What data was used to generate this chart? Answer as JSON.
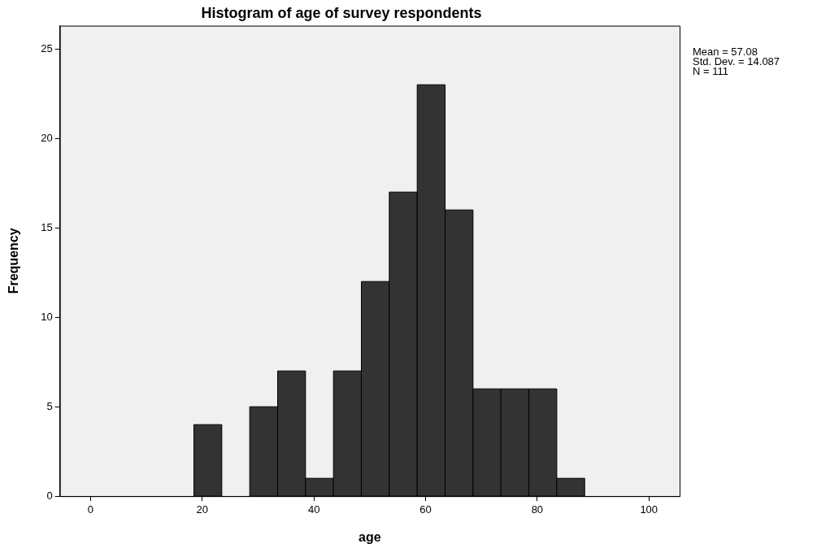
{
  "chart_data": {
    "type": "histogram",
    "title": "Histogram of age of survey respondents",
    "xlabel": "age",
    "ylabel": "Frequency",
    "bins": [
      18.5,
      23.5,
      28.5,
      33.5,
      38.5,
      43.5,
      48.5,
      53.5,
      58.5,
      63.5,
      68.5,
      73.5,
      78.5,
      83.5,
      88.5
    ],
    "values": [
      4,
      0,
      5,
      7,
      1,
      7,
      12,
      17,
      23,
      16,
      6,
      6,
      6,
      1
    ],
    "color": "#333333",
    "xlim": [
      -5.5,
      105.5
    ],
    "xticks": [
      0,
      20,
      40,
      60,
      80,
      100
    ],
    "ylim": [
      0,
      26.3
    ],
    "yticks": [
      0,
      5,
      10,
      15,
      20,
      25
    ],
    "grid": false,
    "legend": false,
    "annotations": [
      "Mean = 57.08",
      "Std. Dev. = 14.087",
      "N = 111"
    ]
  }
}
